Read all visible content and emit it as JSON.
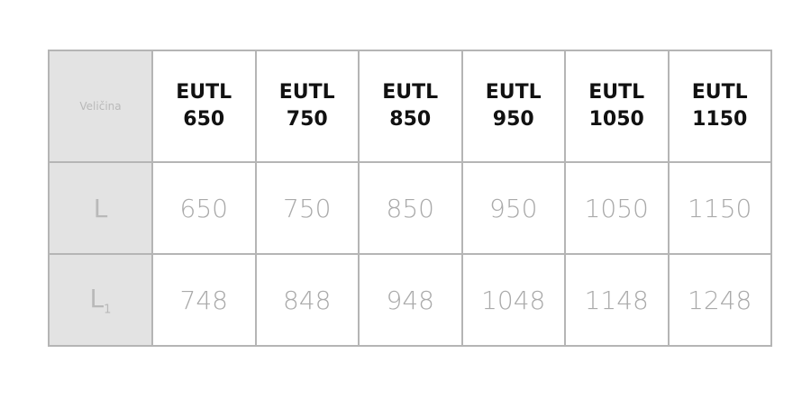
{
  "table": {
    "corner": "Veličina",
    "headers": [
      [
        "EUTL",
        "650"
      ],
      [
        "EUTL",
        "750"
      ],
      [
        "EUTL",
        "850"
      ],
      [
        "EUTL",
        "950"
      ],
      [
        "EUTL",
        "1050"
      ],
      [
        "EUTL",
        "1150"
      ]
    ],
    "rows": [
      {
        "label": "L",
        "sub": "",
        "values": [
          "650",
          "750",
          "850",
          "950",
          "1050",
          "1150"
        ]
      },
      {
        "label": "L",
        "sub": "1",
        "values": [
          "748",
          "848",
          "948",
          "1048",
          "1148",
          "1248"
        ]
      }
    ]
  }
}
